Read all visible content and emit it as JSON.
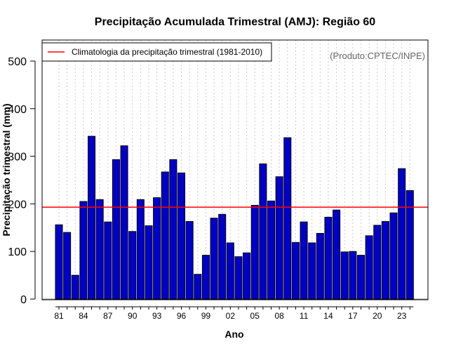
{
  "chart_data": {
    "type": "bar",
    "title": "Precipitação Acumulada Trimestral (AMJ): Região 60",
    "xlabel": "Ano",
    "ylabel": "Precipitação trimestral (mm)",
    "ylim": [
      0,
      540
    ],
    "yticks": [
      0,
      100,
      200,
      300,
      400,
      500
    ],
    "grid": "vertical dotted",
    "legend_position": "top-left",
    "legend_label": "Climatologia da precipitação trimestral (1981-2010)",
    "credit": "(Produto:CPTEC/INPE)",
    "colors": {
      "bar_fill": "#0000cc",
      "bar_edge": "#000000",
      "climatology": "#ff0000",
      "grid": "#cccccc"
    },
    "climatology_value": 193,
    "categories": [
      "81",
      "82",
      "83",
      "84",
      "85",
      "86",
      "87",
      "88",
      "89",
      "90",
      "91",
      "92",
      "93",
      "94",
      "95",
      "96",
      "97",
      "98",
      "99",
      "00",
      "01",
      "02",
      "03",
      "04",
      "05",
      "06",
      "07",
      "08",
      "09",
      "10",
      "11",
      "12",
      "13",
      "14",
      "15",
      "16",
      "17",
      "18",
      "19",
      "20",
      "21",
      "22",
      "23",
      "24"
    ],
    "tick_labels": [
      "81",
      "84",
      "87",
      "90",
      "93",
      "96",
      "99",
      "02",
      "05",
      "08",
      "11",
      "14",
      "17",
      "20",
      "23"
    ],
    "values": [
      156,
      140,
      50,
      205,
      342,
      209,
      162,
      293,
      322,
      142,
      209,
      154,
      213,
      267,
      293,
      265,
      163,
      52,
      92,
      170,
      178,
      118,
      89,
      97,
      197,
      284,
      206,
      257,
      339,
      119,
      162,
      118,
      138,
      172,
      187,
      99,
      100,
      92,
      133,
      155,
      163,
      181,
      274,
      228
    ]
  }
}
